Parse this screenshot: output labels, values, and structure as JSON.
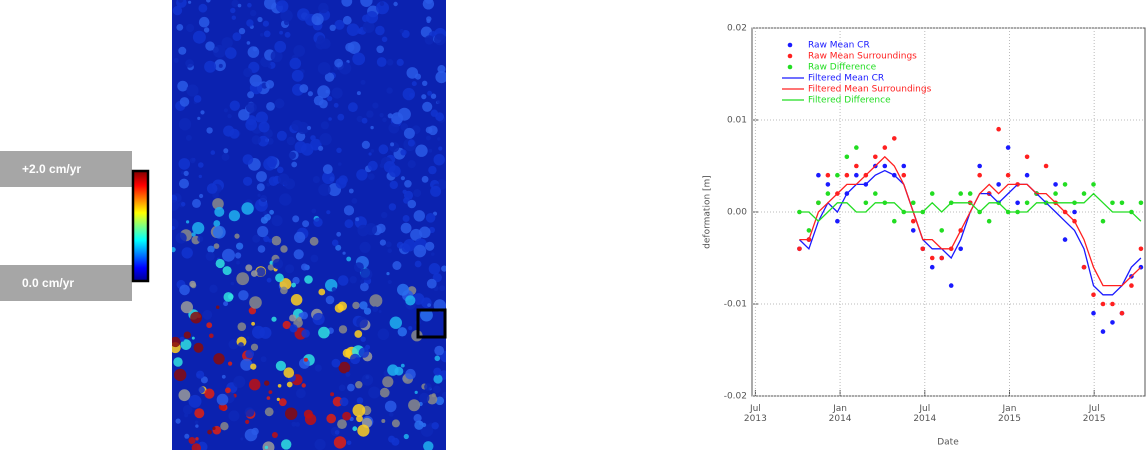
{
  "colorbar": {
    "max_label": "+2.0 cm/yr",
    "min_label": "0.0 cm/yr"
  },
  "chart_data": {
    "type": "line",
    "x_label": "Date",
    "y_label": "deformation [m]",
    "xlim": [
      2013.48,
      2015.8
    ],
    "xticks": [
      {
        "value": 2013.5,
        "label": "Jul 2013"
      },
      {
        "value": 2014.0,
        "label": "Jan 2014"
      },
      {
        "value": 2014.5,
        "label": "Jul 2014"
      },
      {
        "value": 2015.0,
        "label": "Jan 2015"
      },
      {
        "value": 2015.5,
        "label": "Jul 2015"
      }
    ],
    "ylim": [
      -0.02,
      0.02
    ],
    "yticks": [
      0.02,
      0.01,
      {
        "value": 0,
        "label": "0.00"
      },
      -0.01,
      -0.02
    ],
    "grid": true,
    "legend": "top-left",
    "x": [
      2013.76,
      2013.816,
      2013.872,
      2013.928,
      2013.984,
      2014.04,
      2014.096,
      2014.152,
      2014.208,
      2014.264,
      2014.32,
      2014.376,
      2014.432,
      2014.488,
      2014.544,
      2014.6,
      2014.656,
      2014.712,
      2014.768,
      2014.824,
      2014.88,
      2014.936,
      2014.992,
      2015.048,
      2015.104,
      2015.16,
      2015.216,
      2015.272,
      2015.328,
      2015.384,
      2015.44,
      2015.496,
      2015.552,
      2015.608,
      2015.664,
      2015.72,
      2015.776
    ],
    "series": [
      {
        "name": "Raw Mean CR",
        "type": "scatter",
        "color": "#1a1aff",
        "values": [
          -0.004,
          -0.003,
          0.004,
          0.003,
          -0.001,
          0.002,
          0.004,
          0.003,
          0.005,
          0.005,
          0.004,
          0.005,
          -0.002,
          -0.004,
          -0.006,
          -0.005,
          -0.008,
          -0.004,
          0.001,
          0.005,
          0.002,
          0.003,
          0.007,
          0.001,
          0.004,
          0.002,
          0.001,
          0.003,
          -0.003,
          0.0,
          -0.006,
          -0.011,
          -0.013,
          -0.012,
          -0.011,
          -0.007,
          -0.006
        ]
      },
      {
        "name": "Raw Mean Surroundings",
        "type": "scatter",
        "color": "#ff2020",
        "values": [
          -0.004,
          -0.003,
          0.001,
          0.004,
          0.002,
          0.004,
          0.005,
          0.004,
          0.006,
          0.007,
          0.008,
          0.004,
          -0.001,
          -0.004,
          -0.005,
          -0.005,
          -0.004,
          -0.002,
          0.001,
          0.004,
          0.002,
          0.009,
          0.004,
          0.003,
          0.006,
          0.002,
          0.005,
          0.001,
          0.0,
          -0.001,
          -0.006,
          -0.009,
          -0.01,
          -0.01,
          -0.011,
          -0.008,
          -0.004
        ]
      },
      {
        "name": "Raw Difference",
        "type": "scatter",
        "color": "#22dd22",
        "values": [
          0.0,
          -0.002,
          0.001,
          0.002,
          0.004,
          0.006,
          0.007,
          0.001,
          0.002,
          0.001,
          -0.001,
          0.0,
          0.001,
          0.0,
          0.002,
          -0.002,
          0.001,
          0.002,
          0.002,
          0.0,
          -0.001,
          0.001,
          0.0,
          0.0,
          0.001,
          0.002,
          0.001,
          0.002,
          0.003,
          0.001,
          0.002,
          0.003,
          -0.001,
          0.001,
          0.001,
          0.0,
          0.001
        ]
      },
      {
        "name": "Filtered Mean CR",
        "type": "line",
        "color": "#1a1aff",
        "values": [
          -0.003,
          -0.004,
          -0.001,
          0.001,
          0.0,
          0.002,
          0.003,
          0.003,
          0.004,
          0.0045,
          0.004,
          0.003,
          0.0,
          -0.003,
          -0.004,
          -0.004,
          -0.005,
          -0.003,
          0.0,
          0.002,
          0.002,
          0.001,
          0.002,
          0.003,
          0.003,
          0.002,
          0.001,
          0.0,
          -0.001,
          -0.002,
          -0.004,
          -0.008,
          -0.009,
          -0.009,
          -0.008,
          -0.006,
          -0.005
        ]
      },
      {
        "name": "Filtered Mean Surroundings",
        "type": "line",
        "color": "#ff2020",
        "values": [
          -0.003,
          -0.003,
          0.0,
          0.001,
          0.002,
          0.003,
          0.003,
          0.004,
          0.005,
          0.006,
          0.005,
          0.003,
          0.0,
          -0.003,
          -0.003,
          -0.004,
          -0.004,
          -0.002,
          0.0,
          0.002,
          0.003,
          0.002,
          0.003,
          0.003,
          0.003,
          0.002,
          0.002,
          0.001,
          0.0,
          -0.001,
          -0.003,
          -0.006,
          -0.008,
          -0.008,
          -0.008,
          -0.007,
          -0.006
        ]
      },
      {
        "name": "Filtered Difference",
        "type": "line",
        "color": "#22dd22",
        "values": [
          0.0,
          0.0,
          -0.001,
          0.0,
          0.001,
          0.001,
          0.0,
          0.0,
          0.001,
          0.001,
          0.001,
          0.0,
          0.0,
          0.0,
          0.001,
          0.0,
          0.001,
          0.001,
          0.001,
          0.0,
          0.001,
          0.001,
          0.0,
          0.0,
          0.0,
          0.001,
          0.001,
          0.001,
          0.001,
          0.001,
          0.001,
          0.002,
          0.001,
          0.0,
          0.0,
          0.0,
          -0.001
        ]
      }
    ]
  }
}
